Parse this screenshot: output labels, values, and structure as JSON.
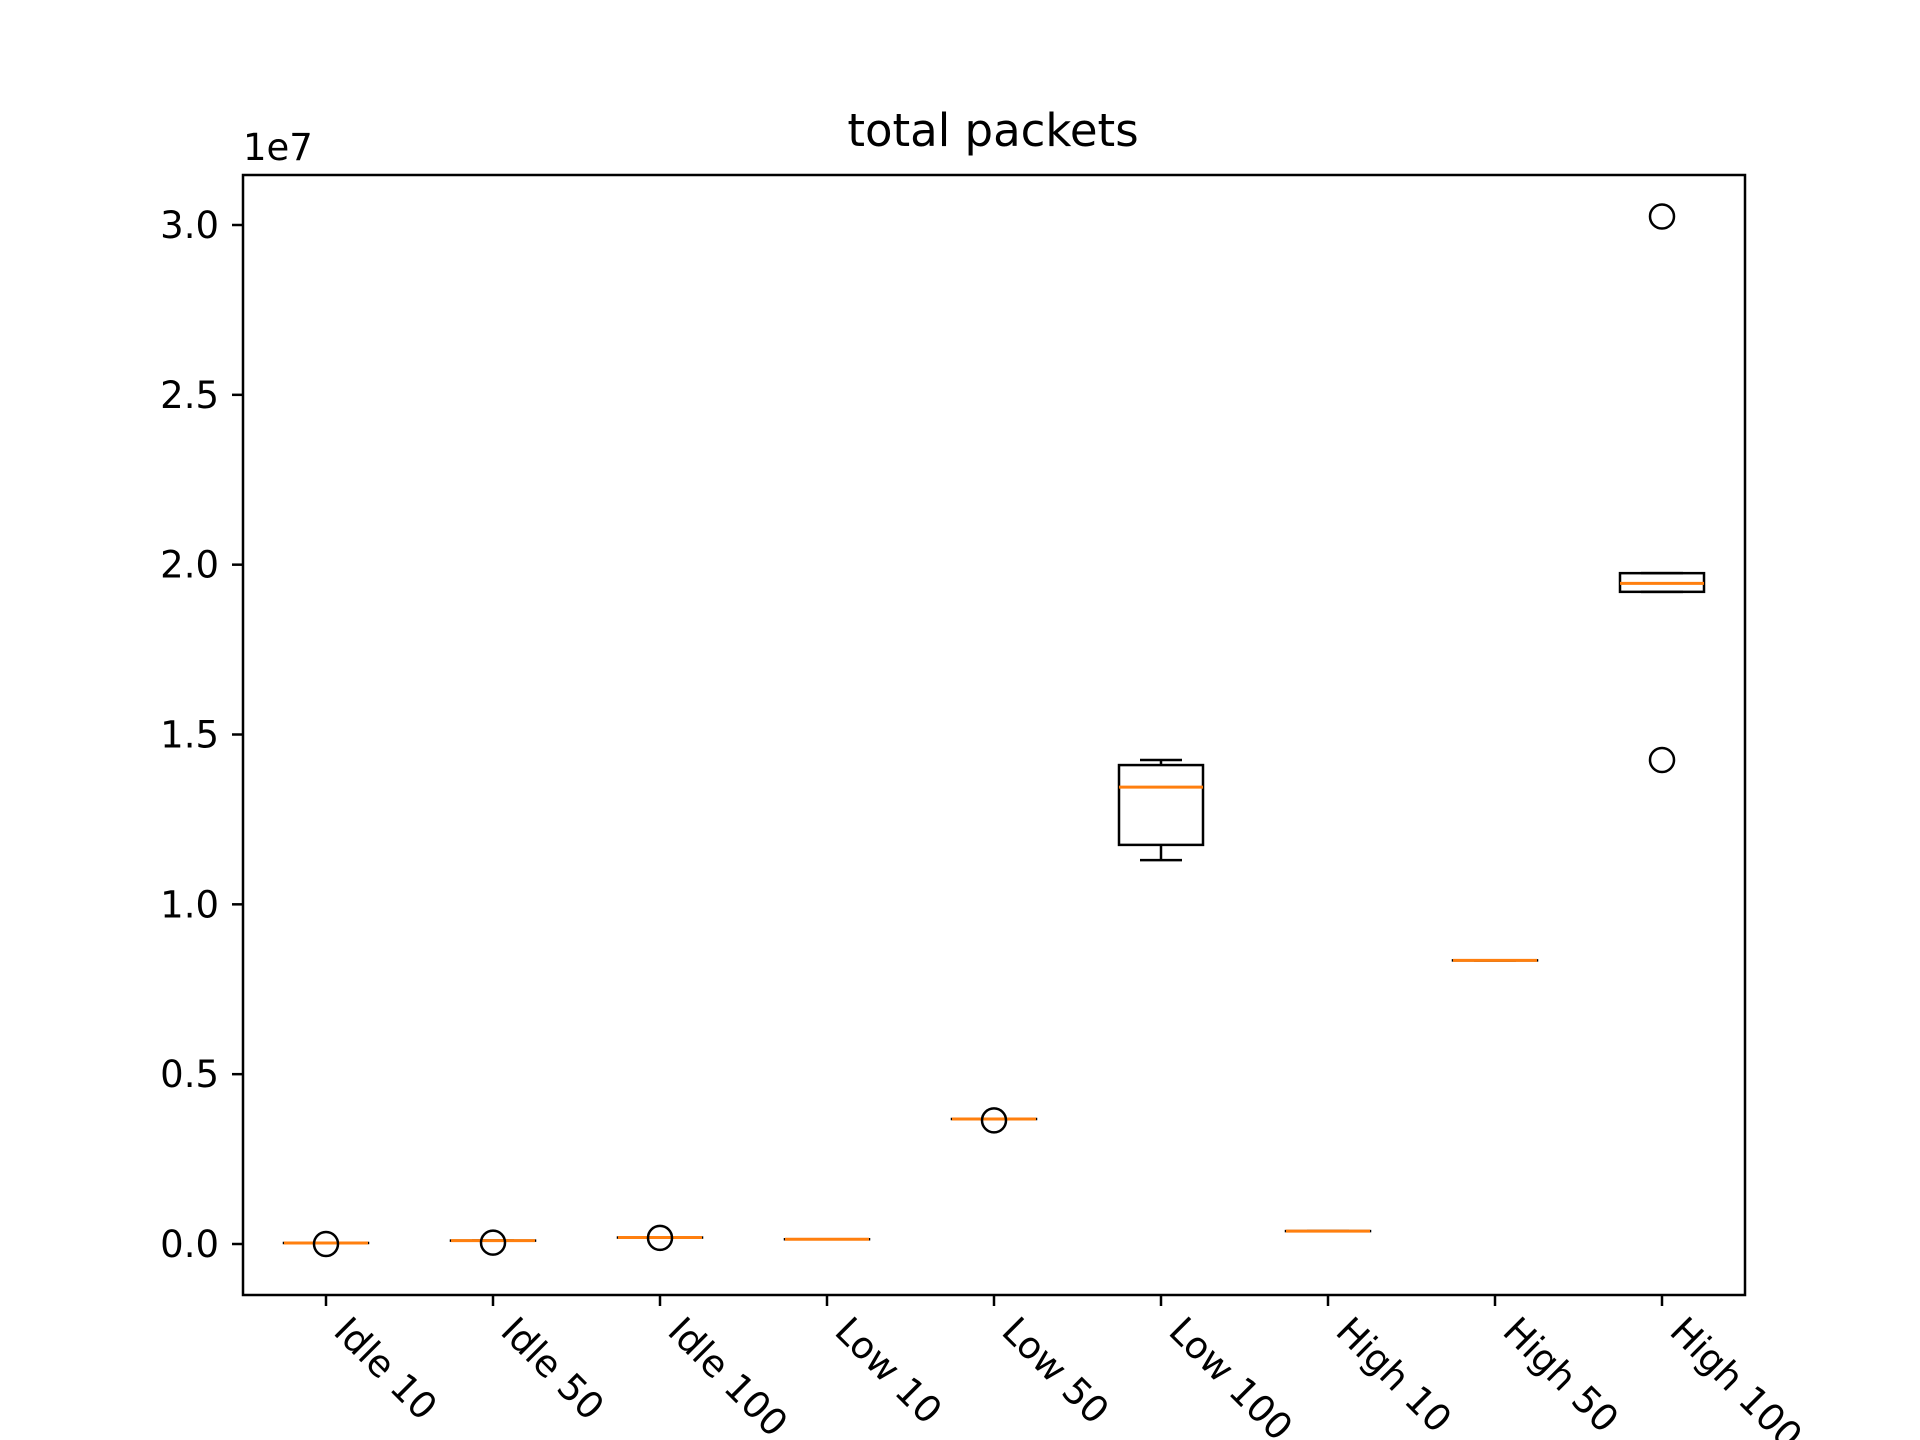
{
  "chart_data": {
    "type": "box",
    "title": "total packets",
    "xlabel": "",
    "ylabel": "",
    "y_offset_label": "1e7",
    "y_multiplier": 10000000,
    "ylim": [
      -1500000,
      31800000
    ],
    "yticks": [
      0,
      5000000,
      10000000,
      15000000,
      20000000,
      25000000,
      30000000
    ],
    "ytick_labels": [
      "0.0",
      "0.5",
      "1.0",
      "1.5",
      "2.0",
      "2.5",
      "3.0"
    ],
    "categories": [
      "Idle 10",
      "Idle 50",
      "Idle 100",
      "Low 10",
      "Low 50",
      "Low 100",
      "High 10",
      "High 50",
      "High 100"
    ],
    "boxes": [
      {
        "category": "Idle 10",
        "whislo": 30000,
        "q1": 30000,
        "med": 30000,
        "q3": 30000,
        "whishi": 30000,
        "fliers": [
          0
        ]
      },
      {
        "category": "Idle 50",
        "whislo": 100000,
        "q1": 100000,
        "med": 100000,
        "q3": 100000,
        "whishi": 100000,
        "fliers": [
          40000
        ]
      },
      {
        "category": "Idle 100",
        "whislo": 190000,
        "q1": 190000,
        "med": 190000,
        "q3": 190000,
        "whishi": 190000,
        "fliers": [
          180000
        ]
      },
      {
        "category": "Low 10",
        "whislo": 140000,
        "q1": 140000,
        "med": 140000,
        "q3": 140000,
        "whishi": 140000,
        "fliers": []
      },
      {
        "category": "Low 50",
        "whislo": 3680000,
        "q1": 3680000,
        "med": 3680000,
        "q3": 3680000,
        "whishi": 3680000,
        "fliers": [
          3640000
        ]
      },
      {
        "category": "Low 100",
        "whislo": 11300000,
        "q1": 11750000,
        "med": 13450000,
        "q3": 14100000,
        "whishi": 14250000,
        "fliers": []
      },
      {
        "category": "High 10",
        "whislo": 380000,
        "q1": 380000,
        "med": 380000,
        "q3": 380000,
        "whishi": 380000,
        "fliers": []
      },
      {
        "category": "High 50",
        "whislo": 8350000,
        "q1": 8350000,
        "med": 8350000,
        "q3": 8350000,
        "whishi": 8350000,
        "fliers": []
      },
      {
        "category": "High 100",
        "whislo": 19200000,
        "q1": 19200000,
        "med": 19450000,
        "q3": 19750000,
        "whishi": 19750000,
        "fliers": [
          30250000,
          14250000
        ]
      }
    ],
    "grid": false,
    "colors": {
      "box": "#000000",
      "median": "#ff7f0e",
      "flier": "#000000",
      "axes": "#000000"
    }
  }
}
